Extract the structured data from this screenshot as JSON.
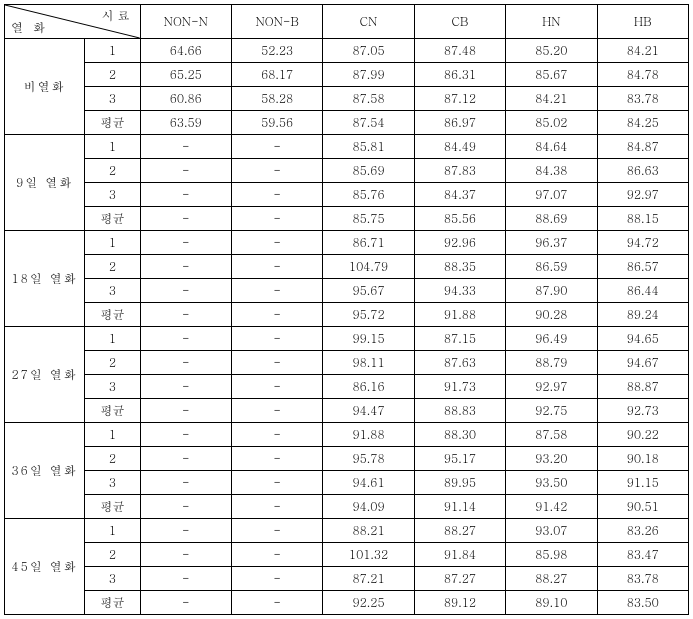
{
  "header": {
    "diag_top": "시 료",
    "diag_bottom": "열  화",
    "cols": [
      "NON-N",
      "NON-B",
      "CN",
      "CB",
      "HN",
      "HB"
    ]
  },
  "row_labels": [
    "1",
    "2",
    "3",
    "평균"
  ],
  "groups": [
    {
      "name": "비열화",
      "rows": [
        [
          "64.66",
          "52.23",
          "87.05",
          "87.48",
          "85.20",
          "84.21"
        ],
        [
          "65.25",
          "68.17",
          "87.99",
          "86.31",
          "85.67",
          "84.78"
        ],
        [
          "60.86",
          "58.28",
          "87.58",
          "87.12",
          "84.21",
          "83.78"
        ],
        [
          "63.59",
          "59.56",
          "87.54",
          "86.97",
          "85.02",
          "84.25"
        ]
      ]
    },
    {
      "name": "9일 열화",
      "rows": [
        [
          "-",
          "-",
          "85.81",
          "84.49",
          "84.64",
          "84.87"
        ],
        [
          "-",
          "-",
          "85.69",
          "87.83",
          "84.38",
          "86.63"
        ],
        [
          "-",
          "-",
          "85.76",
          "84.37",
          "97.07",
          "92.97"
        ],
        [
          "-",
          "-",
          "85.75",
          "85.56",
          "88.69",
          "88.15"
        ]
      ]
    },
    {
      "name": "18일 열화",
      "rows": [
        [
          "-",
          "-",
          "86.71",
          "92.96",
          "96.37",
          "94.72"
        ],
        [
          "-",
          "-",
          "104.79",
          "88.35",
          "86.59",
          "86.57"
        ],
        [
          "-",
          "-",
          "95.67",
          "94.33",
          "87.90",
          "86.44"
        ],
        [
          "-",
          "-",
          "95.72",
          "91.88",
          "90.28",
          "89.24"
        ]
      ]
    },
    {
      "name": "27일 열화",
      "rows": [
        [
          "-",
          "-",
          "99.15",
          "87.15",
          "96.49",
          "94.65"
        ],
        [
          "-",
          "-",
          "98.11",
          "87.63",
          "88.79",
          "94.67"
        ],
        [
          "-",
          "-",
          "86.16",
          "91.73",
          "92.97",
          "88.87"
        ],
        [
          "-",
          "-",
          "94.47",
          "88.83",
          "92.75",
          "92.73"
        ]
      ]
    },
    {
      "name": "36일 열화",
      "rows": [
        [
          "-",
          "-",
          "91.88",
          "88.30",
          "87.58",
          "90.22"
        ],
        [
          "-",
          "-",
          "95.78",
          "95.17",
          "93.20",
          "90.18"
        ],
        [
          "-",
          "-",
          "94.61",
          "89.95",
          "93.50",
          "91.15"
        ],
        [
          "-",
          "-",
          "94.09",
          "91.14",
          "91.42",
          "90.51"
        ]
      ]
    },
    {
      "name": "45일 열화",
      "rows": [
        [
          "-",
          "-",
          "88.21",
          "88.27",
          "93.07",
          "83.26"
        ],
        [
          "-",
          "-",
          "101.32",
          "91.84",
          "85.98",
          "83.47"
        ],
        [
          "-",
          "-",
          "87.21",
          "87.27",
          "88.27",
          "83.78"
        ],
        [
          "-",
          "-",
          "92.25",
          "89.12",
          "89.10",
          "83.50"
        ]
      ]
    }
  ]
}
